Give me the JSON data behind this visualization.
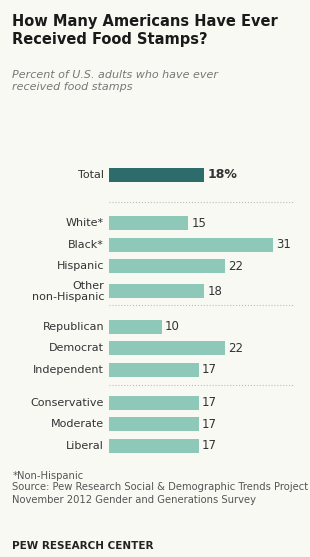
{
  "title": "How Many Americans Have Ever\nReceived Food Stamps?",
  "subtitle": "Percent of U.S. adults who have ever\nreceived food stamps",
  "categories": [
    "Total",
    "White*",
    "Black*",
    "Hispanic",
    "Other\nnon-Hispanic",
    "Republican",
    "Democrat",
    "Independent",
    "Conservative",
    "Moderate",
    "Liberal"
  ],
  "values": [
    18,
    15,
    31,
    22,
    18,
    10,
    22,
    17,
    17,
    17,
    17
  ],
  "bar_color_total": "#2e6b6b",
  "bar_color_rest": "#8ec8b8",
  "background_color": "#f9f9f4",
  "footnote1": "*Non-Hispanic",
  "footnote2": "Source: Pew Research Social & Demographic Trends Project\nNovember 2012 Gender and Generations Survey",
  "footer": "PEW RESEARCH CENTER",
  "xlim": [
    0,
    35
  ],
  "separator_color": "#bbbbbb"
}
